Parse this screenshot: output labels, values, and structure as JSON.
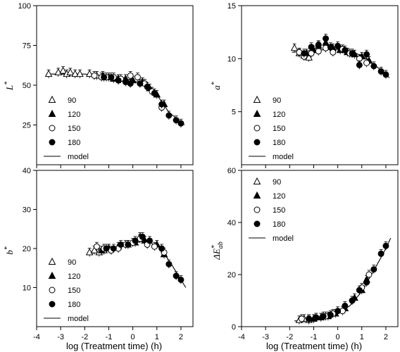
{
  "xlabel": "log (Treatment time) (h)",
  "chart_data": [
    {
      "id": "L",
      "type": "scatter",
      "ylabel_main": "L",
      "ylabel_sup": "*",
      "xlim": [
        -4,
        2.5
      ],
      "ylim": [
        0,
        100
      ],
      "xticks": [
        -4,
        -3,
        -2,
        -1,
        0,
        1,
        2
      ],
      "xtick_labels": [
        "",
        "",
        "",
        "",
        "",
        "",
        ""
      ],
      "yticks": [
        25,
        50,
        75,
        100
      ],
      "ytick_labels": [
        "25",
        "50",
        "75",
        "100"
      ],
      "legend": {
        "position": "lower-left",
        "entries": [
          "90",
          "120",
          "150",
          "180"
        ],
        "line_label": "model"
      },
      "series": [
        {
          "name": "90",
          "marker": "open-triangle",
          "points": [
            [
              -3.5,
              57
            ],
            [
              -3.1,
              58
            ],
            [
              -2.9,
              59
            ],
            [
              -2.75,
              57
            ],
            [
              -2.6,
              58
            ],
            [
              -2.4,
              57
            ],
            [
              -2.2,
              57
            ],
            [
              -1.8,
              57
            ],
            [
              -1.5,
              56
            ]
          ]
        },
        {
          "name": "120",
          "marker": "filled-triangle",
          "points": [
            [
              -1.25,
              56
            ],
            [
              -1.0,
              55
            ],
            [
              -0.8,
              54
            ],
            [
              -0.6,
              54
            ],
            [
              -0.3,
              54
            ],
            [
              0.0,
              53
            ],
            [
              0.4,
              52
            ],
            [
              0.7,
              48
            ],
            [
              1.0,
              44
            ],
            [
              1.3,
              38
            ]
          ]
        },
        {
          "name": "150",
          "marker": "open-circle",
          "points": [
            [
              -1.6,
              56
            ],
            [
              -1.3,
              55
            ],
            [
              -1.1,
              55
            ],
            [
              -0.8,
              55
            ],
            [
              -0.5,
              54
            ],
            [
              -0.1,
              56
            ],
            [
              0.2,
              55
            ],
            [
              0.5,
              51
            ],
            [
              0.8,
              46
            ],
            [
              1.2,
              36
            ]
          ]
        },
        {
          "name": "180",
          "marker": "filled-circle",
          "points": [
            [
              -1.2,
              55
            ],
            [
              -0.9,
              55
            ],
            [
              -0.6,
              53
            ],
            [
              -0.3,
              52
            ],
            [
              -0.1,
              51
            ],
            [
              0.3,
              51
            ],
            [
              0.6,
              49
            ],
            [
              0.9,
              45
            ],
            [
              1.2,
              38
            ],
            [
              1.5,
              31
            ],
            [
              1.8,
              28
            ],
            [
              2.0,
              26
            ]
          ]
        }
      ],
      "model": [
        [
          -3.6,
          57
        ],
        [
          -2,
          57
        ],
        [
          -1,
          55.5
        ],
        [
          0,
          53
        ],
        [
          0.5,
          50
        ],
        [
          1.0,
          44
        ],
        [
          1.5,
          33
        ],
        [
          2.15,
          25
        ]
      ]
    },
    {
      "id": "a",
      "type": "scatter",
      "ylabel_main": "a",
      "ylabel_sup": "*",
      "xlim": [
        -4,
        2.5
      ],
      "ylim": [
        0,
        15
      ],
      "xticks": [
        -4,
        -3,
        -2,
        -1,
        0,
        1,
        2
      ],
      "xtick_labels": [
        "",
        "",
        "",
        "",
        "",
        "",
        ""
      ],
      "yticks": [
        5,
        10,
        15
      ],
      "ytick_labels": [
        "5",
        "10",
        "15"
      ],
      "legend": {
        "position": "lower-left",
        "entries": [
          "90",
          "120",
          "150",
          "180"
        ],
        "line_label": "model"
      },
      "series": [
        {
          "name": "90",
          "marker": "open-triangle",
          "points": [
            [
              -1.8,
              11.0
            ],
            [
              -1.6,
              10.5
            ],
            [
              -1.4,
              10.3
            ],
            [
              -1.2,
              10.1
            ]
          ]
        },
        {
          "name": "120",
          "marker": "filled-triangle",
          "points": [
            [
              -1.3,
              10.5
            ],
            [
              -1.0,
              10.8
            ],
            [
              -0.8,
              11.2
            ],
            [
              -0.5,
              11.5
            ],
            [
              -0.2,
              11.0
            ],
            [
              0.1,
              10.8
            ],
            [
              0.4,
              10.6
            ],
            [
              0.7,
              10.4
            ],
            [
              1.0,
              10.2
            ],
            [
              1.3,
              9.8
            ]
          ]
        },
        {
          "name": "150",
          "marker": "open-circle",
          "points": [
            [
              -1.6,
              10.6
            ],
            [
              -1.4,
              10.2
            ],
            [
              -1.1,
              10.5
            ],
            [
              -0.8,
              10.7
            ],
            [
              -0.5,
              11.0
            ],
            [
              -0.2,
              10.6
            ],
            [
              0.2,
              10.9
            ],
            [
              0.5,
              10.5
            ],
            [
              0.9,
              10.0
            ],
            [
              1.2,
              9.6
            ]
          ]
        },
        {
          "name": "180",
          "marker": "filled-circle",
          "points": [
            [
              -1.4,
              10.5
            ],
            [
              -1.1,
              11.1
            ],
            [
              -0.8,
              11.3
            ],
            [
              -0.5,
              11.9
            ],
            [
              -0.3,
              11.1
            ],
            [
              0.0,
              11.2
            ],
            [
              0.3,
              10.8
            ],
            [
              0.6,
              10.5
            ],
            [
              0.9,
              9.4
            ],
            [
              1.2,
              10.4
            ],
            [
              1.5,
              9.3
            ],
            [
              1.8,
              8.8
            ],
            [
              2.0,
              8.5
            ]
          ]
        }
      ],
      "model": [
        [
          -1.9,
          10.6
        ],
        [
          -1,
          10.8
        ],
        [
          0,
          10.9
        ],
        [
          0.6,
          10.7
        ],
        [
          1.2,
          10.0
        ],
        [
          1.7,
          9.1
        ],
        [
          2.15,
          8.2
        ]
      ]
    },
    {
      "id": "b",
      "type": "scatter",
      "ylabel_main": "b",
      "ylabel_sup": "*",
      "xlim": [
        -4,
        2.5
      ],
      "ylim": [
        0,
        40
      ],
      "xticks": [
        -4,
        -3,
        -2,
        -1,
        0,
        1,
        2
      ],
      "xtick_labels": [
        "-4",
        "-3",
        "-2",
        "-1",
        "0",
        "1",
        "2"
      ],
      "yticks": [
        10,
        20,
        30,
        40
      ],
      "ytick_labels": [
        "10",
        "20",
        "30",
        "40"
      ],
      "legend": {
        "position": "lower-left",
        "entries": [
          "90",
          "120",
          "150",
          "180"
        ],
        "line_label": "model"
      },
      "series": [
        {
          "name": "90",
          "marker": "open-triangle",
          "points": [
            [
              -1.8,
              19
            ],
            [
              -1.6,
              19.5
            ],
            [
              -1.4,
              19
            ],
            [
              -1.2,
              19.5
            ],
            [
              -1.0,
              20
            ],
            [
              0.3,
              23
            ]
          ]
        },
        {
          "name": "120",
          "marker": "filled-triangle",
          "points": [
            [
              -1.3,
              19.5
            ],
            [
              -1.0,
              20
            ],
            [
              -0.6,
              20.5
            ],
            [
              -0.2,
              21
            ],
            [
              0.1,
              21.5
            ],
            [
              0.5,
              22
            ],
            [
              1.0,
              21
            ],
            [
              1.3,
              18.5
            ]
          ]
        },
        {
          "name": "150",
          "marker": "open-circle",
          "points": [
            [
              -1.5,
              20.5
            ],
            [
              -1.2,
              20
            ],
            [
              -0.9,
              19.5
            ],
            [
              -0.6,
              20
            ],
            [
              -0.3,
              21
            ],
            [
              0.0,
              21.5
            ],
            [
              0.3,
              22.5
            ],
            [
              0.6,
              21
            ],
            [
              0.9,
              20.5
            ],
            [
              1.3,
              19
            ]
          ]
        },
        {
          "name": "180",
          "marker": "filled-circle",
          "points": [
            [
              -1.1,
              20
            ],
            [
              -0.8,
              20
            ],
            [
              -0.5,
              21
            ],
            [
              -0.2,
              21
            ],
            [
              0.1,
              22
            ],
            [
              0.4,
              23
            ],
            [
              0.7,
              22
            ],
            [
              1.2,
              20
            ],
            [
              1.5,
              16
            ],
            [
              1.8,
              13
            ],
            [
              2.0,
              12
            ]
          ]
        }
      ],
      "model": [
        [
          -1.9,
          18.5
        ],
        [
          -1,
          19.8
        ],
        [
          0,
          21.3
        ],
        [
          0.5,
          22
        ],
        [
          1.1,
          20.5
        ],
        [
          1.6,
          16
        ],
        [
          2.2,
          10
        ]
      ]
    },
    {
      "id": "dE",
      "type": "scatter",
      "ylabel_main": "ΔE",
      "ylabel_sup": "*",
      "ylabel_sub": "ab",
      "xlim": [
        -4,
        2.5
      ],
      "ylim": [
        0,
        60
      ],
      "xticks": [
        -4,
        -3,
        -2,
        -1,
        0,
        1,
        2
      ],
      "xtick_labels": [
        "-4",
        "-3",
        "-2",
        "-1",
        "0",
        "1",
        "2"
      ],
      "yticks": [
        0,
        20,
        40,
        60
      ],
      "ytick_labels": [
        "0",
        "20",
        "40",
        "60"
      ],
      "legend": {
        "position": "upper-left",
        "entries": [
          "90",
          "120",
          "150",
          "180"
        ],
        "line_label": "model"
      },
      "series": [
        {
          "name": "90",
          "marker": "open-triangle",
          "points": [
            [
              -1.6,
              2.5
            ],
            [
              -1.4,
              3
            ],
            [
              -1.2,
              2.5
            ],
            [
              -1.0,
              3
            ]
          ]
        },
        {
          "name": "120",
          "marker": "filled-triangle",
          "points": [
            [
              -1.0,
              3
            ],
            [
              -0.7,
              3.5
            ],
            [
              -0.4,
              4
            ],
            [
              -0.1,
              5
            ],
            [
              0.3,
              7
            ],
            [
              0.7,
              11
            ],
            [
              1.0,
              14
            ],
            [
              1.2,
              18
            ]
          ]
        },
        {
          "name": "150",
          "marker": "open-circle",
          "points": [
            [
              -1.5,
              3
            ],
            [
              -1.2,
              3
            ],
            [
              -0.9,
              3.5
            ],
            [
              -0.5,
              4
            ],
            [
              -0.2,
              5
            ],
            [
              0.2,
              6
            ],
            [
              0.6,
              10
            ],
            [
              1.0,
              15
            ],
            [
              1.3,
              20
            ]
          ]
        },
        {
          "name": "180",
          "marker": "filled-circle",
          "points": [
            [
              -1.2,
              3
            ],
            [
              -0.9,
              3.5
            ],
            [
              -0.6,
              4
            ],
            [
              -0.3,
              4.5
            ],
            [
              0.0,
              6
            ],
            [
              0.3,
              8
            ],
            [
              0.6,
              10
            ],
            [
              0.9,
              14
            ],
            [
              1.2,
              17
            ],
            [
              1.5,
              22
            ],
            [
              1.8,
              28
            ],
            [
              2.0,
              31
            ]
          ]
        }
      ],
      "model": [
        [
          -1.8,
          2.2
        ],
        [
          -1,
          2.8
        ],
        [
          -0.5,
          3.6
        ],
        [
          0,
          5
        ],
        [
          0.5,
          8
        ],
        [
          1.0,
          13.5
        ],
        [
          1.5,
          21.5
        ],
        [
          2.0,
          30
        ],
        [
          2.2,
          34
        ]
      ]
    }
  ]
}
